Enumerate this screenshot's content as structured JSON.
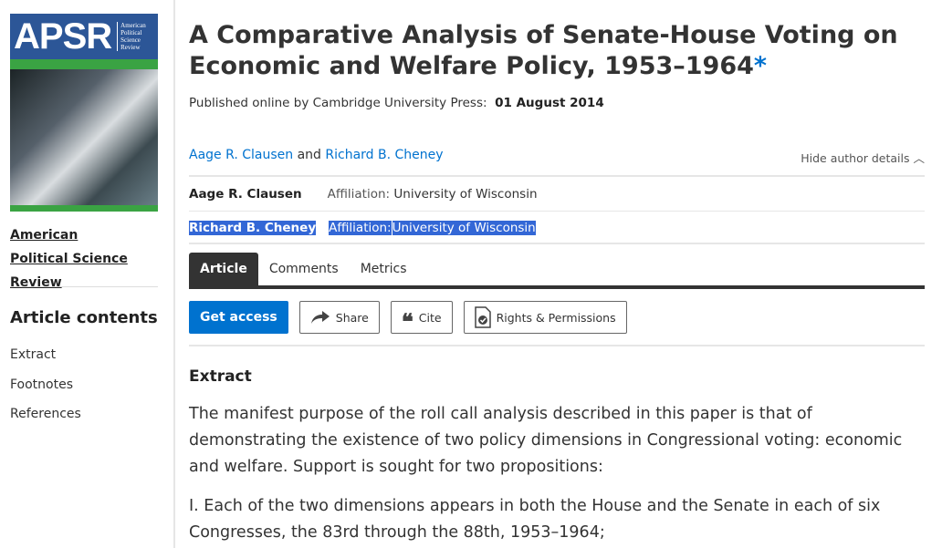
{
  "journal": {
    "cover_logo": "APSR",
    "cover_subtitle": "American Political Science Review",
    "name": "American Political Science Review"
  },
  "sidebar": {
    "contents_title": "Article contents",
    "items": [
      {
        "label": "Extract"
      },
      {
        "label": "Footnotes"
      },
      {
        "label": "References"
      }
    ]
  },
  "article": {
    "title": "A Comparative Analysis of Senate-House Voting on Economic and Welfare Policy, 1953–1964",
    "title_mark": "*",
    "published_prefix": "Published online by Cambridge University Press:",
    "published_date": "01 August 2014",
    "authors": [
      {
        "name": "Aage R. Clausen",
        "affiliation": "University of Wisconsin"
      },
      {
        "name": "Richard B. Cheney",
        "affiliation": "University of Wisconsin"
      }
    ],
    "authors_join": "and",
    "affiliation_label": "Affiliation:",
    "hide_details": "Hide author details"
  },
  "tabs": [
    {
      "label": "Article",
      "active": true
    },
    {
      "label": "Comments"
    },
    {
      "label": "Metrics"
    }
  ],
  "actions": {
    "get_access": "Get access",
    "share": "Share",
    "cite": "Cite",
    "rights": "Rights & Permissions"
  },
  "content": {
    "heading": "Extract",
    "paragraphs": [
      "The manifest purpose of the roll call analysis described in this paper is that of demonstrating the existence of two policy dimensions in Congressional voting: economic and welfare. Support is sought for two propositions:",
      "I. Each of the two dimensions appears in both the House and the Senate in each of six Congresses, the 83rd through the 88th, 1953–1964;"
    ]
  },
  "colors": {
    "accent": "#0072cf",
    "selection": "#3367d6",
    "tab_dark": "#333333"
  }
}
